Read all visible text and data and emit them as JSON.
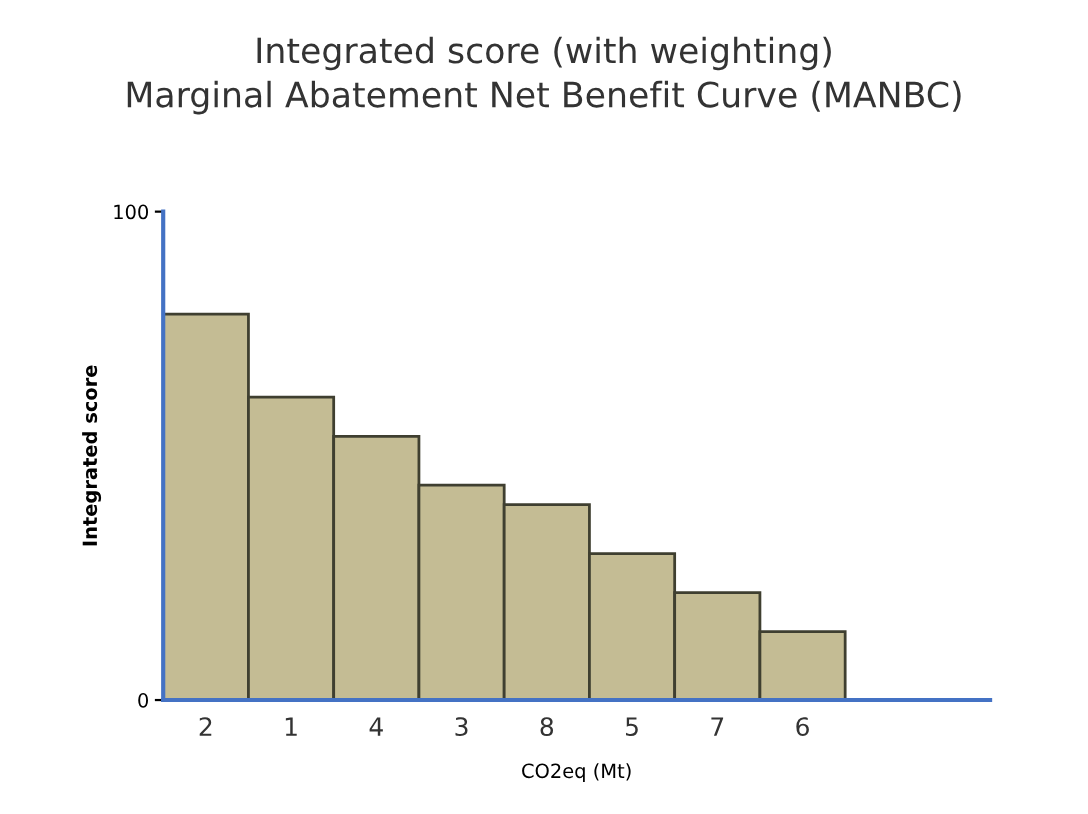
{
  "chart_data": {
    "type": "bar",
    "title": "Integrated score (with weighting)\nMarginal Abatement Net Benefit Curve (MANBC)",
    "xlabel": "CO2eq (Mt)",
    "ylabel": "Integrated score",
    "categories": [
      "2",
      "1",
      "4",
      "3",
      "8",
      "5",
      "7",
      "6"
    ],
    "values": [
      79,
      62,
      54,
      44,
      40,
      30,
      22,
      14
    ],
    "color": "#c4bc94",
    "ylim": [
      0,
      100
    ],
    "yticks": [
      0,
      100
    ],
    "grid": false
  }
}
